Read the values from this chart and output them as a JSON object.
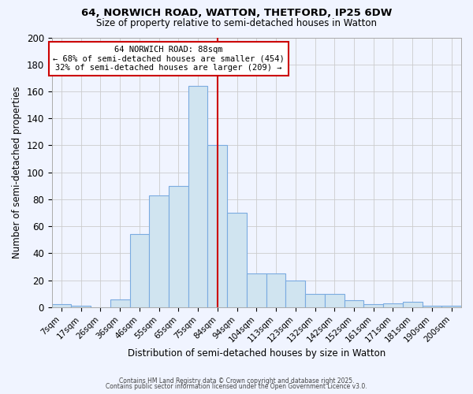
{
  "title1": "64, NORWICH ROAD, WATTON, THETFORD, IP25 6DW",
  "title2": "Size of property relative to semi-detached houses in Watton",
  "xlabel": "Distribution of semi-detached houses by size in Watton",
  "ylabel": "Number of semi-detached properties",
  "bar_labels": [
    "7sqm",
    "17sqm",
    "26sqm",
    "36sqm",
    "46sqm",
    "55sqm",
    "65sqm",
    "75sqm",
    "84sqm",
    "94sqm",
    "104sqm",
    "113sqm",
    "123sqm",
    "132sqm",
    "142sqm",
    "152sqm",
    "161sqm",
    "171sqm",
    "181sqm",
    "190sqm",
    "200sqm"
  ],
  "bar_values": [
    2,
    1,
    0,
    6,
    54,
    83,
    90,
    164,
    120,
    70,
    25,
    25,
    20,
    10,
    10,
    5,
    2,
    3,
    4,
    1,
    1
  ],
  "bar_color": "#d0e4f0",
  "bar_edge_color": "#7aabe0",
  "vline_x": 8,
  "vline_color": "#cc0000",
  "annotation_text": "64 NORWICH ROAD: 88sqm\n← 68% of semi-detached houses are smaller (454)\n32% of semi-detached houses are larger (209) →",
  "annotation_box_color": "#ffffff",
  "annotation_box_edge": "#cc0000",
  "ylim": [
    0,
    200
  ],
  "yticks": [
    0,
    20,
    40,
    60,
    80,
    100,
    120,
    140,
    160,
    180,
    200
  ],
  "grid_color": "#cccccc",
  "bg_color": "#f0f4ff",
  "footer_text1": "Contains HM Land Registry data © Crown copyright and database right 2025.",
  "footer_text2": "Contains public sector information licensed under the Open Government Licence v3.0."
}
